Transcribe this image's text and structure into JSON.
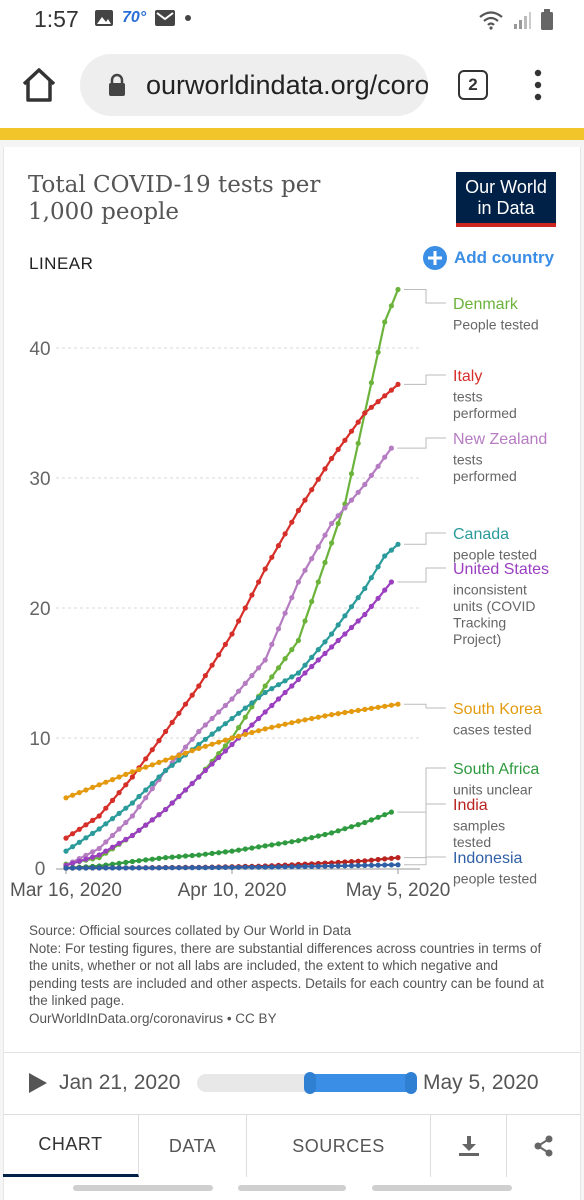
{
  "status": {
    "time": "1:57",
    "temperature": "70°"
  },
  "browser": {
    "url": "ourworldindata.org/coronavirus",
    "tab_count": "2"
  },
  "chart_header": {
    "title": "Total COVID-19 tests per 1,000 people",
    "logo_line1": "Our World",
    "logo_line2": "in Data",
    "scale": "LINEAR",
    "add_country": "Add country"
  },
  "chart_data": {
    "type": "line",
    "title": "Total COVID-19 tests per 1,000 people",
    "x_ticks": [
      "Mar 16, 2020",
      "Apr 10, 2020",
      "May 5, 2020"
    ],
    "x_range": [
      "2020-03-16",
      "2020-05-05"
    ],
    "y_ticks": [
      0,
      10,
      20,
      30,
      40
    ],
    "ylim": [
      0,
      45
    ],
    "grid": "horizontal dashed",
    "legend": "right, inline labels",
    "series": [
      {
        "name": "Denmark",
        "unit": "People tested",
        "color": "#6bb33b",
        "points": [
          [
            0,
            0.3
          ],
          [
            5,
            0.8
          ],
          [
            10,
            2.5
          ],
          [
            15,
            4.5
          ],
          [
            20,
            7.0
          ],
          [
            25,
            10.0
          ],
          [
            30,
            14.0
          ],
          [
            35,
            17.5
          ],
          [
            38,
            22.0
          ],
          [
            42,
            28.0
          ],
          [
            45,
            35.0
          ],
          [
            48,
            42.0
          ],
          [
            50,
            44.5
          ]
        ]
      },
      {
        "name": "Italy",
        "unit": "tests performed",
        "color": "#d62f2a",
        "points": [
          [
            0,
            2.3
          ],
          [
            5,
            4.0
          ],
          [
            10,
            7.0
          ],
          [
            15,
            10.5
          ],
          [
            20,
            14.0
          ],
          [
            25,
            18.0
          ],
          [
            30,
            23.0
          ],
          [
            35,
            27.5
          ],
          [
            40,
            31.5
          ],
          [
            45,
            35.0
          ],
          [
            50,
            37.2
          ]
        ]
      },
      {
        "name": "New Zealand",
        "unit": "tests performed",
        "color": "#b57cc1",
        "points": [
          [
            0,
            0.2
          ],
          [
            5,
            1.5
          ],
          [
            10,
            4.0
          ],
          [
            15,
            7.5
          ],
          [
            20,
            10.5
          ],
          [
            25,
            13.0
          ],
          [
            30,
            16.0
          ],
          [
            35,
            22.0
          ],
          [
            40,
            26.5
          ],
          [
            45,
            29.5
          ],
          [
            49,
            32.3
          ]
        ]
      },
      {
        "name": "Canada",
        "unit": "people tested",
        "color": "#2b9a9a",
        "points": [
          [
            0,
            1.3
          ],
          [
            5,
            3.0
          ],
          [
            10,
            5.0
          ],
          [
            15,
            7.5
          ],
          [
            20,
            9.5
          ],
          [
            25,
            11.5
          ],
          [
            30,
            13.5
          ],
          [
            35,
            15.0
          ],
          [
            40,
            18.0
          ],
          [
            45,
            21.5
          ],
          [
            48,
            24.0
          ],
          [
            50,
            24.9
          ]
        ]
      },
      {
        "name": "United States",
        "unit": "inconsistent units (COVID Tracking Project)",
        "color": "#9a3fbf",
        "points": [
          [
            0,
            0.2
          ],
          [
            5,
            1.0
          ],
          [
            10,
            2.5
          ],
          [
            15,
            4.5
          ],
          [
            20,
            7.0
          ],
          [
            25,
            9.5
          ],
          [
            30,
            12.0
          ],
          [
            35,
            14.5
          ],
          [
            40,
            17.0
          ],
          [
            45,
            19.5
          ],
          [
            49,
            22.0
          ]
        ]
      },
      {
        "name": "South Korea",
        "unit": "cases tested",
        "color": "#e39a0e",
        "points": [
          [
            0,
            5.4
          ],
          [
            5,
            6.4
          ],
          [
            10,
            7.4
          ],
          [
            15,
            8.3
          ],
          [
            20,
            9.2
          ],
          [
            25,
            10.0
          ],
          [
            30,
            10.7
          ],
          [
            35,
            11.3
          ],
          [
            40,
            11.8
          ],
          [
            45,
            12.2
          ],
          [
            50,
            12.6
          ]
        ]
      },
      {
        "name": "South Africa",
        "unit": "units unclear",
        "color": "#2f9a3f",
        "points": [
          [
            0,
            0.0
          ],
          [
            5,
            0.15
          ],
          [
            10,
            0.5
          ],
          [
            15,
            0.8
          ],
          [
            20,
            1.0
          ],
          [
            25,
            1.3
          ],
          [
            30,
            1.7
          ],
          [
            35,
            2.1
          ],
          [
            40,
            2.7
          ],
          [
            45,
            3.5
          ],
          [
            49,
            4.3
          ]
        ]
      },
      {
        "name": "India",
        "unit": "samples tested",
        "color": "#b8231f",
        "points": [
          [
            0,
            0.0
          ],
          [
            10,
            0.02
          ],
          [
            20,
            0.05
          ],
          [
            30,
            0.15
          ],
          [
            40,
            0.4
          ],
          [
            45,
            0.55
          ],
          [
            50,
            0.8
          ]
        ]
      },
      {
        "name": "Indonesia",
        "unit": "people tested",
        "color": "#2f5fa5",
        "points": [
          [
            0,
            0.0
          ],
          [
            10,
            0.01
          ],
          [
            20,
            0.03
          ],
          [
            30,
            0.07
          ],
          [
            40,
            0.15
          ],
          [
            50,
            0.25
          ]
        ]
      }
    ]
  },
  "source_note": {
    "line1": "Source: Official sources collated by Our World in Data",
    "line2": "Note: For testing figures, there are substantial differences across countries in terms of the units, whether or not all labs are included, the extent to which negative and pending tests are included and other aspects. Details for each country can be found at the linked page.",
    "line3": "OurWorldInData.org/coronavirus • CC BY"
  },
  "timeline": {
    "start_label": "Jan 21, 2020",
    "end_label": "May 5, 2020",
    "range_start": 0.5,
    "range_end": 1.0
  },
  "tabs": [
    {
      "label": "CHART",
      "active": true
    },
    {
      "label": "DATA",
      "active": false
    },
    {
      "label": "SOURCES",
      "active": false
    }
  ]
}
